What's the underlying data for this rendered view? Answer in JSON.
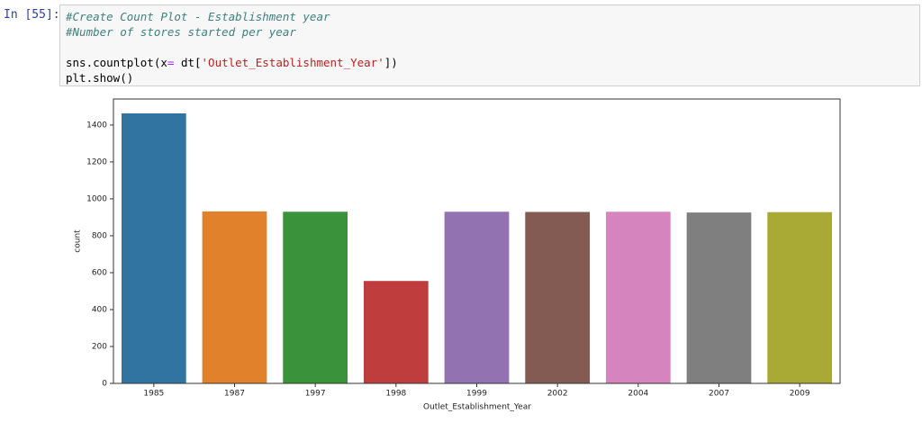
{
  "prompt": "In [55]:",
  "code": [
    [
      "#Create Count Plot - Establishment year"
    ],
    [
      "#Number of stores started per year"
    ],
    [],
    [
      "sns.countplot(x",
      "=",
      " dt[",
      "'Outlet_Establishment_Year'",
      "])"
    ],
    [
      "plt.show()"
    ]
  ],
  "chart_data": {
    "type": "bar",
    "x_label": "Outlet_Establishment_Year",
    "y_label": "count",
    "categories": [
      "1985",
      "1987",
      "1997",
      "1998",
      "1999",
      "2002",
      "2004",
      "2007",
      "2009"
    ],
    "values": [
      1463,
      932,
      930,
      555,
      930,
      929,
      930,
      926,
      928
    ],
    "colors": [
      "#3274a1",
      "#e1812c",
      "#3a923a",
      "#c03d3e",
      "#9372b2",
      "#845b53",
      "#d684bd",
      "#7f7f7f",
      "#a9aa35"
    ],
    "ylim": [
      0,
      1541
    ],
    "yticks": [
      0,
      200,
      400,
      600,
      800,
      1000,
      1200,
      1400
    ]
  }
}
